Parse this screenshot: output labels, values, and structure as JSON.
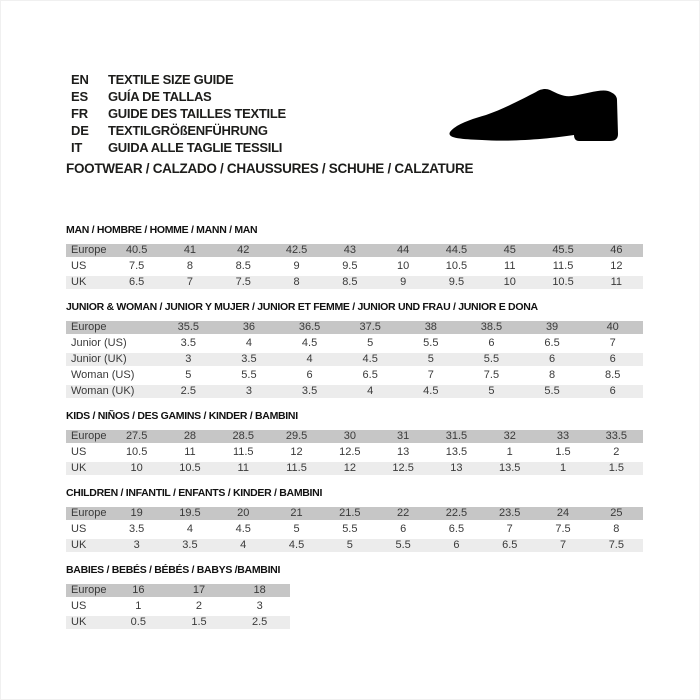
{
  "header": {
    "languages": [
      {
        "code": "EN",
        "text": "TEXTILE SIZE GUIDE"
      },
      {
        "code": "ES",
        "text": "GUÍA DE TALLAS"
      },
      {
        "code": "FR",
        "text": "GUIDE DES TAILLES TEXTILE"
      },
      {
        "code": "DE",
        "text": "TEXTILGRÖßENFÜHRUNG"
      },
      {
        "code": "IT",
        "text": "GUIDA ALLE TAGLIE TESSILI"
      }
    ],
    "category_title": "FOOTWEAR / CALZADO / CHAUSSURES / SCHUHE / CALZATURE",
    "shoe_icon": "dress-shoe-silhouette"
  },
  "colors": {
    "header_row": "#c6c6c6",
    "alt_row": "#ececec",
    "text": "#1d1d1b",
    "shoe": "#000000"
  },
  "tables": [
    {
      "title": "MAN / HOMBRE / HOMME / MANN / MAN",
      "rows": [
        {
          "label": "Europe",
          "values": [
            "40.5",
            "41",
            "42",
            "42.5",
            "43",
            "44",
            "44.5",
            "45",
            "45.5",
            "46"
          ]
        },
        {
          "label": "US",
          "values": [
            "7.5",
            "8",
            "8.5",
            "9",
            "9.5",
            "10",
            "10.5",
            "11",
            "11.5",
            "12"
          ]
        },
        {
          "label": "UK",
          "values": [
            "6.5",
            "7",
            "7.5",
            "8",
            "8.5",
            "9",
            "9.5",
            "10",
            "10.5",
            "11"
          ]
        }
      ]
    },
    {
      "title": "JUNIOR & WOMAN / JUNIOR Y MUJER / JUNIOR ET FEMME / JUNIOR UND FRAU / JUNIOR E DONA",
      "rows": [
        {
          "label": "Europe",
          "values": [
            "35.5",
            "36",
            "36.5",
            "37.5",
            "38",
            "38.5",
            "39",
            "40"
          ]
        },
        {
          "label": "Junior (US)",
          "values": [
            "3.5",
            "4",
            "4.5",
            "5",
            "5.5",
            "6",
            "6.5",
            "7"
          ]
        },
        {
          "label": "Junior (UK)",
          "values": [
            "3",
            "3.5",
            "4",
            "4.5",
            "5",
            "5.5",
            "6",
            "6"
          ]
        },
        {
          "label": "Woman (US)",
          "values": [
            "5",
            "5.5",
            "6",
            "6.5",
            "7",
            "7.5",
            "8",
            "8.5"
          ]
        },
        {
          "label": "Woman (UK)",
          "values": [
            "2.5",
            "3",
            "3.5",
            "4",
            "4.5",
            "5",
            "5.5",
            "6"
          ]
        }
      ]
    },
    {
      "title": "KIDS / NIÑOS / DES GAMINS / KINDER / BAMBINI",
      "rows": [
        {
          "label": "Europe",
          "values": [
            "27.5",
            "28",
            "28.5",
            "29.5",
            "30",
            "31",
            "31.5",
            "32",
            "33",
            "33.5"
          ]
        },
        {
          "label": "US",
          "values": [
            "10.5",
            "11",
            "11.5",
            "12",
            "12.5",
            "13",
            "13.5",
            "1",
            "1.5",
            "2"
          ]
        },
        {
          "label": "UK",
          "values": [
            "10",
            "10.5",
            "11",
            "11.5",
            "12",
            "12.5",
            "13",
            "13.5",
            "1",
            "1.5"
          ]
        }
      ]
    },
    {
      "title": "CHILDREN / INFANTIL / ENFANTS / KINDER / BAMBINI",
      "rows": [
        {
          "label": "Europe",
          "values": [
            "19",
            "19.5",
            "20",
            "21",
            "21.5",
            "22",
            "22.5",
            "23.5",
            "24",
            "25"
          ]
        },
        {
          "label": "US",
          "values": [
            "3.5",
            "4",
            "4.5",
            "5",
            "5.5",
            "6",
            "6.5",
            "7",
            "7.5",
            "8"
          ]
        },
        {
          "label": "UK",
          "values": [
            "3",
            "3.5",
            "4",
            "4.5",
            "5",
            "5.5",
            "6",
            "6.5",
            "7",
            "7.5"
          ]
        }
      ]
    },
    {
      "title": "BABIES / BEBÉS / BÉBÉS / BABYS /BAMBINI",
      "rows": [
        {
          "label": "Europe",
          "values": [
            "16",
            "17",
            "18"
          ]
        },
        {
          "label": "US",
          "values": [
            "1",
            "2",
            "3"
          ]
        },
        {
          "label": "UK",
          "values": [
            "0.5",
            "1.5",
            "2.5"
          ]
        }
      ]
    }
  ]
}
